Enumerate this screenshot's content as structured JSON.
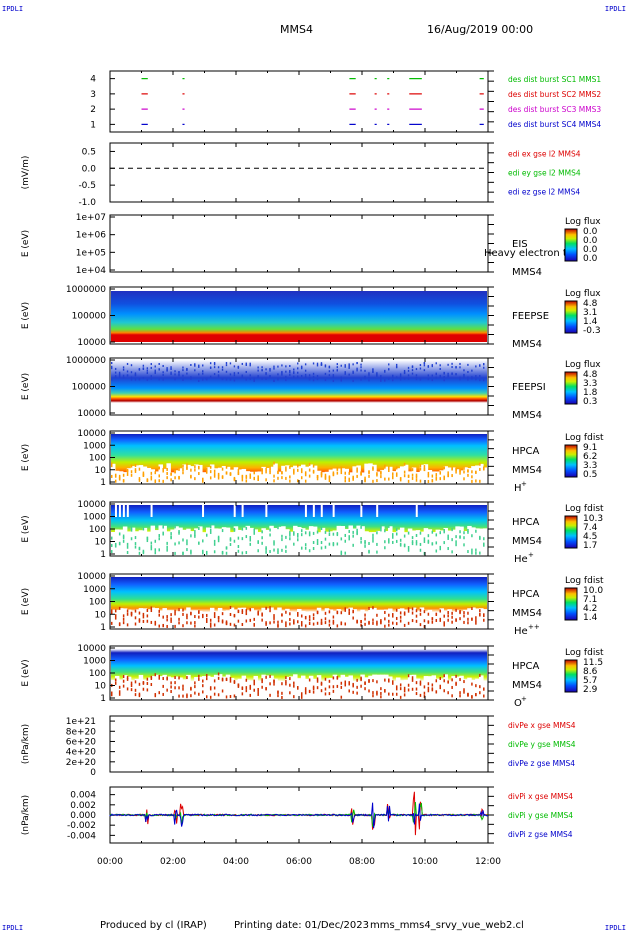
{
  "header": {
    "corner_label": "IPDLI",
    "spacecraft": "MMS4",
    "date": "16/Aug/2019 00:00"
  },
  "footer": {
    "produced_by": "Produced by cl (IRAP)",
    "printing_date": "Printing date: 01/Dec/2023",
    "script": "mms_mms4_srvy_vue_web2.cl"
  },
  "colors": {
    "red": "#dd0000",
    "green": "#00bb00",
    "blue": "#0000cc",
    "magenta": "#cc00cc"
  },
  "chart_data": [
    {
      "type": "line",
      "panel": "burst",
      "xlim": [
        "00:00",
        "12:00"
      ],
      "ylim": [
        0.5,
        4.5
      ],
      "yticks": [
        "1",
        "2",
        "3",
        "4"
      ],
      "xticks": [
        "00:00",
        "02:00",
        "04:00",
        "06:00",
        "08:00",
        "10:00",
        "12:00"
      ],
      "series": [
        {
          "name": "des dist burst SC1 MMS1",
          "level": 4,
          "color": "#00bb00",
          "intervals": [
            [
              "01:00",
              "01:12"
            ],
            [
              "02:18",
              "02:22"
            ],
            [
              "07:36",
              "07:48"
            ],
            [
              "08:24",
              "08:28"
            ],
            [
              "08:48",
              "08:52"
            ],
            [
              "09:30",
              "09:54"
            ],
            [
              "11:44",
              "11:52"
            ]
          ]
        },
        {
          "name": "des dist burst SC2 MMS2",
          "level": 3,
          "color": "#dd0000",
          "intervals": [
            [
              "01:00",
              "01:12"
            ],
            [
              "02:18",
              "02:22"
            ],
            [
              "07:36",
              "07:48"
            ],
            [
              "08:24",
              "08:28"
            ],
            [
              "08:48",
              "08:52"
            ],
            [
              "09:30",
              "09:54"
            ],
            [
              "11:44",
              "11:52"
            ]
          ]
        },
        {
          "name": "des dist burst SC3 MMS3",
          "level": 2,
          "color": "#cc00cc",
          "intervals": [
            [
              "01:00",
              "01:12"
            ],
            [
              "02:18",
              "02:22"
            ],
            [
              "07:36",
              "07:48"
            ],
            [
              "08:24",
              "08:28"
            ],
            [
              "08:48",
              "08:52"
            ],
            [
              "09:30",
              "09:54"
            ],
            [
              "11:44",
              "11:52"
            ]
          ]
        },
        {
          "name": "des dist burst SC4 MMS4",
          "level": 1,
          "color": "#0000cc",
          "intervals": [
            [
              "01:00",
              "01:12"
            ],
            [
              "02:18",
              "02:22"
            ],
            [
              "07:36",
              "07:48"
            ],
            [
              "08:24",
              "08:28"
            ],
            [
              "08:48",
              "08:52"
            ],
            [
              "09:30",
              "09:54"
            ],
            [
              "11:44",
              "11:52"
            ]
          ]
        }
      ]
    },
    {
      "type": "line",
      "panel": "edi",
      "ylabel": "(mV/m)",
      "ylim": [
        -1.0,
        0.75
      ],
      "yticks": [
        "0.5",
        "0.0",
        "-0.5",
        "-1.0"
      ],
      "series": [
        {
          "name": "edi ex gse l2 MMS4",
          "color": "#dd0000",
          "values": []
        },
        {
          "name": "edi ey gse l2 MMS4",
          "color": "#00bb00",
          "values": []
        },
        {
          "name": "edi ez gse l2 MMS4",
          "color": "#0000cc",
          "values": []
        }
      ],
      "reference_line": 0.0
    },
    {
      "type": "heatmap",
      "panel": "eis",
      "ylabel": "E (eV)",
      "yticks": [
        "1e+07",
        "1e+06",
        "1e+05",
        "1e+04"
      ],
      "instrument": "EIS",
      "species": "Heavy electron to",
      "sc": "MMS4",
      "colorbar_title": "Log flux",
      "colorbar_ticks": [
        "0.0",
        "0.0",
        "0.0",
        "0.0"
      ],
      "empty": true
    },
    {
      "type": "heatmap",
      "panel": "feepse",
      "ylabel": "E (eV)",
      "yticks": [
        "1000000",
        "100000",
        "10000"
      ],
      "instrument": "FEEPSE",
      "sc": "MMS4",
      "colorbar_title": "Log flux",
      "colorbar_ticks": [
        "4.8",
        "3.1",
        "1.4",
        "-0.3"
      ],
      "log_scale": true
    },
    {
      "type": "heatmap",
      "panel": "feepsi",
      "ylabel": "E (eV)",
      "yticks": [
        "1000000",
        "100000",
        "10000"
      ],
      "instrument": "FEEPSI",
      "sc": "MMS4",
      "colorbar_title": "Log flux",
      "colorbar_ticks": [
        "4.8",
        "3.3",
        "1.8",
        "0.3"
      ],
      "log_scale": true
    },
    {
      "type": "heatmap",
      "panel": "hpca_h",
      "ylabel": "E (eV)",
      "yticks": [
        "10000",
        "1000",
        "100",
        "10",
        "1"
      ],
      "instrument": "HPCA",
      "sc": "MMS4",
      "species": "H",
      "charge": "+",
      "colorbar_title": "Log fdist",
      "colorbar_ticks": [
        "9.1",
        "6.2",
        "3.3",
        "0.5"
      ]
    },
    {
      "type": "heatmap",
      "panel": "hpca_he",
      "ylabel": "E (eV)",
      "yticks": [
        "10000",
        "1000",
        "100",
        "10",
        "1"
      ],
      "instrument": "HPCA",
      "sc": "MMS4",
      "species": "He",
      "charge": "+",
      "colorbar_title": "Log fdist",
      "colorbar_ticks": [
        "10.3",
        "7.4",
        "4.5",
        "1.7"
      ]
    },
    {
      "type": "heatmap",
      "panel": "hpca_hepp",
      "ylabel": "E (eV)",
      "yticks": [
        "10000",
        "1000",
        "100",
        "10",
        "1"
      ],
      "instrument": "HPCA",
      "sc": "MMS4",
      "species": "He",
      "charge": "++",
      "colorbar_title": "Log fdist",
      "colorbar_ticks": [
        "10.0",
        "7.1",
        "4.2",
        "1.4"
      ]
    },
    {
      "type": "heatmap",
      "panel": "hpca_o",
      "ylabel": "E (eV)",
      "yticks": [
        "10000",
        "1000",
        "100",
        "10",
        "1"
      ],
      "instrument": "HPCA",
      "sc": "MMS4",
      "species": "O",
      "charge": "+",
      "colorbar_title": "Log fdist",
      "colorbar_ticks": [
        "11.5",
        "8.6",
        "5.7",
        "2.9"
      ]
    },
    {
      "type": "line",
      "panel": "divpe",
      "ylabel": "(nPa/km)",
      "ylim": [
        0,
        1.1e+21
      ],
      "yticks": [
        "1e+21",
        "8e+20",
        "6e+20",
        "4e+20",
        "2e+20",
        "0"
      ],
      "series": [
        {
          "name": "divPe x gse MMS4",
          "color": "#dd0000",
          "values": []
        },
        {
          "name": "divPe y gse MMS4",
          "color": "#00bb00",
          "values": []
        },
        {
          "name": "divPe z gse MMS4",
          "color": "#0000cc",
          "values": []
        }
      ],
      "reference_line": 0
    },
    {
      "type": "line",
      "panel": "divpi",
      "ylabel": "(nPa/km)",
      "ylim": [
        -0.0055,
        0.0055
      ],
      "yticks": [
        "0.004",
        "0.002",
        "0.000",
        "-0.002",
        "-0.004"
      ],
      "series": [
        {
          "name": "divPi x gse MMS4",
          "color": "#dd0000"
        },
        {
          "name": "divPi y gse MMS4",
          "color": "#00bb00"
        },
        {
          "name": "divPi z gse MMS4",
          "color": "#0000cc"
        }
      ],
      "spikes": [
        {
          "t": "01:10",
          "amp": 0.0018
        },
        {
          "t": "02:05",
          "amp": 0.0025
        },
        {
          "t": "02:16",
          "amp": 0.003
        },
        {
          "t": "07:42",
          "amp": 0.002
        },
        {
          "t": "08:22",
          "amp": 0.0035
        },
        {
          "t": "08:50",
          "amp": 0.0028
        },
        {
          "t": "09:40",
          "amp": 0.0045
        },
        {
          "t": "09:52",
          "amp": 0.0032
        },
        {
          "t": "11:48",
          "amp": 0.0012
        }
      ]
    }
  ]
}
